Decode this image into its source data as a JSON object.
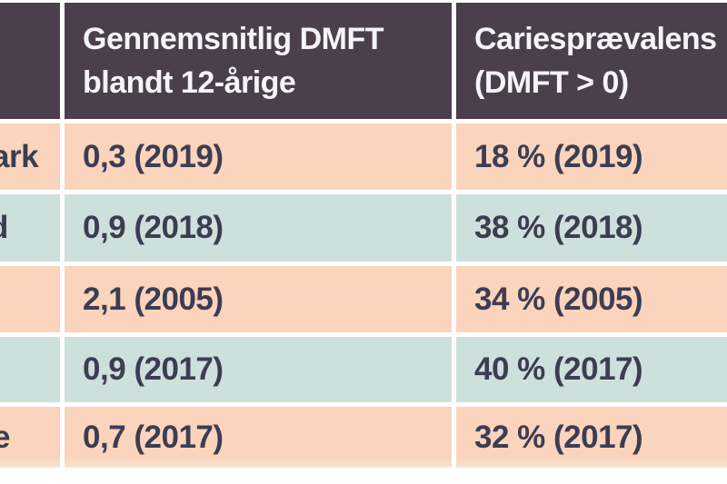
{
  "table": {
    "title_hint": "Tabel: DMFT og cariesprævalens",
    "headers": {
      "country": "",
      "dmft": "Gennemsnitlig DMFT\nblandt 12-årige",
      "caries": "Cariesprævalens\n(DMFT > 0)"
    },
    "rows": [
      {
        "country_fragment": "ark",
        "dmft": "0,3 (2019)",
        "caries": "18 % (2019)"
      },
      {
        "country_fragment": "d",
        "dmft": "0,9 (2018)",
        "caries": "38 % (2018)"
      },
      {
        "country_fragment": "",
        "dmft": "2,1 (2005)",
        "caries": "34 % (2005)"
      },
      {
        "country_fragment": "",
        "dmft": "0,9 (2017)",
        "caries": "40 % (2017)"
      },
      {
        "country_fragment": "e",
        "dmft": "0,7 (2017)",
        "caries": "32 % (2017)"
      }
    ],
    "colors": {
      "header_bg": "#4b3f4d",
      "header_text": "#f7f3fa",
      "row_peach": "#fad4bc",
      "row_teal": "#cee0db",
      "body_text": "#3d3d51",
      "divider": "#ffffff"
    }
  }
}
